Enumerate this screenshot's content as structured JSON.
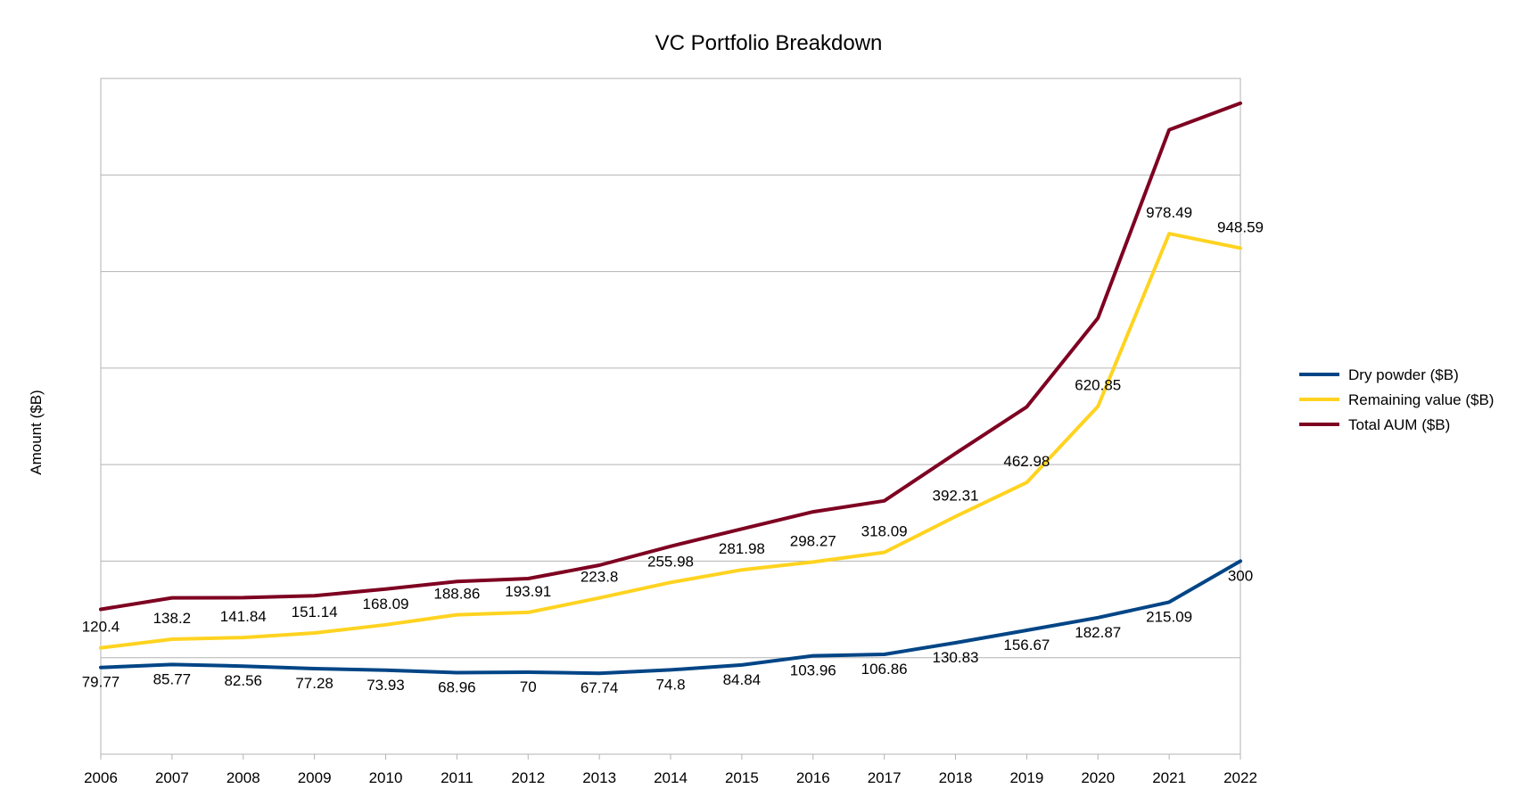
{
  "chart_data": {
    "type": "line",
    "title": "VC Portfolio Breakdown",
    "xlabel": "",
    "ylabel": "Amount ($B)",
    "x": [
      "2006",
      "2007",
      "2008",
      "2009",
      "2010",
      "2011",
      "2012",
      "2013",
      "2014",
      "2015",
      "2016",
      "2017",
      "2018",
      "2019",
      "2020",
      "2021",
      "2022"
    ],
    "ylim": [
      -100,
      1300
    ],
    "grid": true,
    "y_tick_labels_visible": false,
    "legend_position": "right",
    "series": [
      {
        "name": "Dry powder ($B)",
        "color": "#004586",
        "values": [
          79.77,
          85.77,
          82.56,
          77.28,
          73.93,
          68.96,
          70,
          67.74,
          74.8,
          84.84,
          103.96,
          106.86,
          130.83,
          156.67,
          182.87,
          215.09,
          300
        ],
        "labels_visible": true,
        "label_position": "below"
      },
      {
        "name": "Remaining value ($B)",
        "color": "#ffd320",
        "values": [
          120.4,
          138.2,
          141.84,
          151.14,
          168.09,
          188.86,
          193.91,
          223.8,
          255.98,
          281.98,
          298.27,
          318.09,
          392.31,
          462.98,
          620.85,
          978.49,
          948.59
        ],
        "labels_visible": true,
        "label_position": "above"
      },
      {
        "name": "Total AUM ($B)",
        "color": "#7e0021",
        "values": [
          200.17,
          223.97,
          224.4,
          228.42,
          242.02,
          257.82,
          263.91,
          291.54,
          330.78,
          366.82,
          402.23,
          424.95,
          523.14,
          619.65,
          803.72,
          1193.58,
          1248.59
        ],
        "labels_visible": false
      }
    ]
  }
}
